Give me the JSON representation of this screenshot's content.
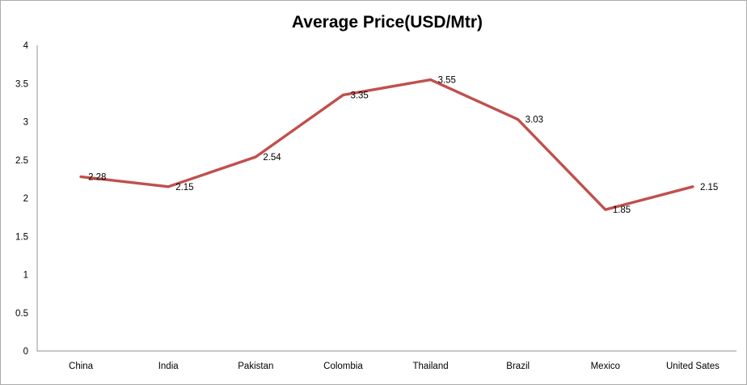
{
  "chart_data": {
    "type": "line",
    "title": "Average Price(USD/Mtr)",
    "categories": [
      "China",
      "India",
      "Pakistan",
      "Colombia",
      "Thailand",
      "Brazil",
      "Mexico",
      "United Sates"
    ],
    "series": [
      {
        "name": "Average Price(USD/Mtr)",
        "values": [
          2.28,
          2.15,
          2.54,
          3.35,
          3.55,
          3.03,
          1.85,
          2.15
        ]
      }
    ],
    "data_labels": [
      "2.28",
      "2.15",
      "2.54",
      "3.35",
      "3.55",
      "3.03",
      "1.85",
      "2.15"
    ],
    "y_ticks": [
      0,
      0.5,
      1,
      1.5,
      2,
      2.5,
      3,
      3.5,
      4
    ],
    "y_tick_labels": [
      "0",
      "0.5",
      "1",
      "1.5",
      "2",
      "2.5",
      "3",
      "3.5",
      "4"
    ],
    "ylim": [
      0,
      4
    ],
    "grid": false,
    "legend": "none",
    "colors": {
      "line": "#C0504D",
      "axis": "#A6A6A6",
      "text": "#000000",
      "border": "#ABABAB",
      "background": "#FFFFFF"
    }
  }
}
